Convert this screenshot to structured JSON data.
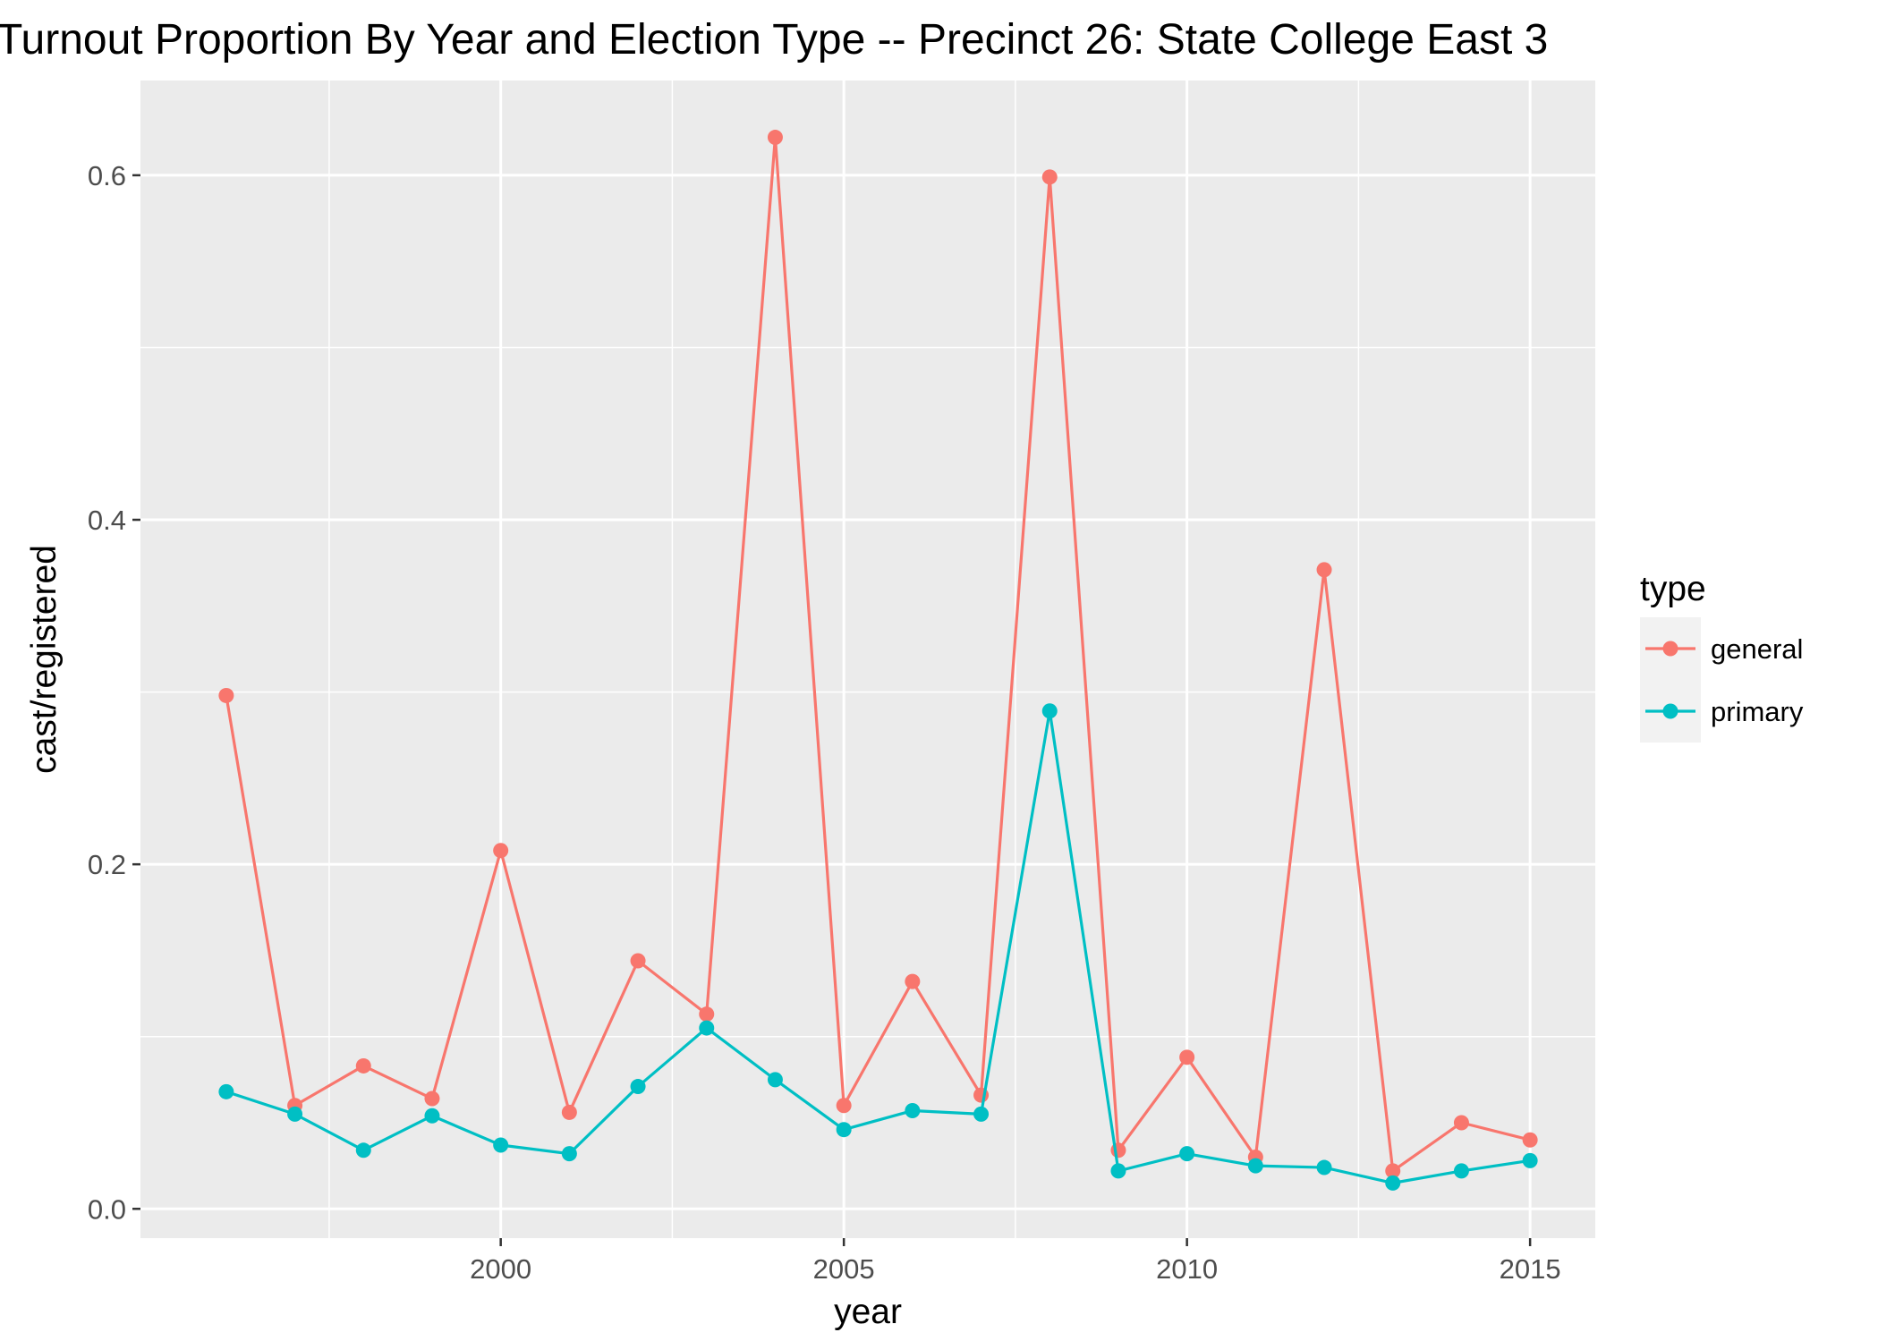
{
  "chart_data": {
    "type": "line",
    "title": "Turnout Proportion By Year and Election Type -- Precinct 26: State College East 3",
    "xlabel": "year",
    "ylabel": "cast/registered",
    "x": [
      1996,
      1997,
      1998,
      1999,
      2000,
      2001,
      2002,
      2003,
      2004,
      2005,
      2006,
      2007,
      2008,
      2009,
      2010,
      2011,
      2012,
      2013,
      2014,
      2015
    ],
    "xlim": [
      1994.75,
      2015.95
    ],
    "ylim": [
      -0.017,
      0.655
    ],
    "x_ticks": [
      2000,
      2005,
      2010,
      2015
    ],
    "x_tick_labels": [
      "2000",
      "2005",
      "2010",
      "2015"
    ],
    "y_ticks": [
      0.0,
      0.2,
      0.4,
      0.6
    ],
    "y_tick_labels": [
      "0.0",
      "0.2",
      "0.4",
      "0.6"
    ],
    "grid": true,
    "markers": true,
    "legend": {
      "title": "type",
      "position": "right"
    },
    "series": [
      {
        "name": "general",
        "color": "#F8766D",
        "values": [
          0.298,
          0.06,
          0.083,
          0.064,
          0.208,
          0.056,
          0.144,
          0.113,
          0.622,
          0.06,
          0.132,
          0.066,
          0.599,
          0.034,
          0.088,
          0.03,
          0.371,
          0.022,
          0.05,
          0.04
        ]
      },
      {
        "name": "primary",
        "color": "#00BFC4",
        "values": [
          0.068,
          0.055,
          0.034,
          0.054,
          0.037,
          0.032,
          0.071,
          0.105,
          0.075,
          0.046,
          0.057,
          0.055,
          0.289,
          0.022,
          0.032,
          0.025,
          0.024,
          0.015,
          0.022,
          0.028
        ]
      }
    ],
    "colors": {
      "panel_background": "#EBEBEB",
      "grid_line": "#FFFFFF",
      "legend_key_background": "#F2F2F2"
    }
  }
}
